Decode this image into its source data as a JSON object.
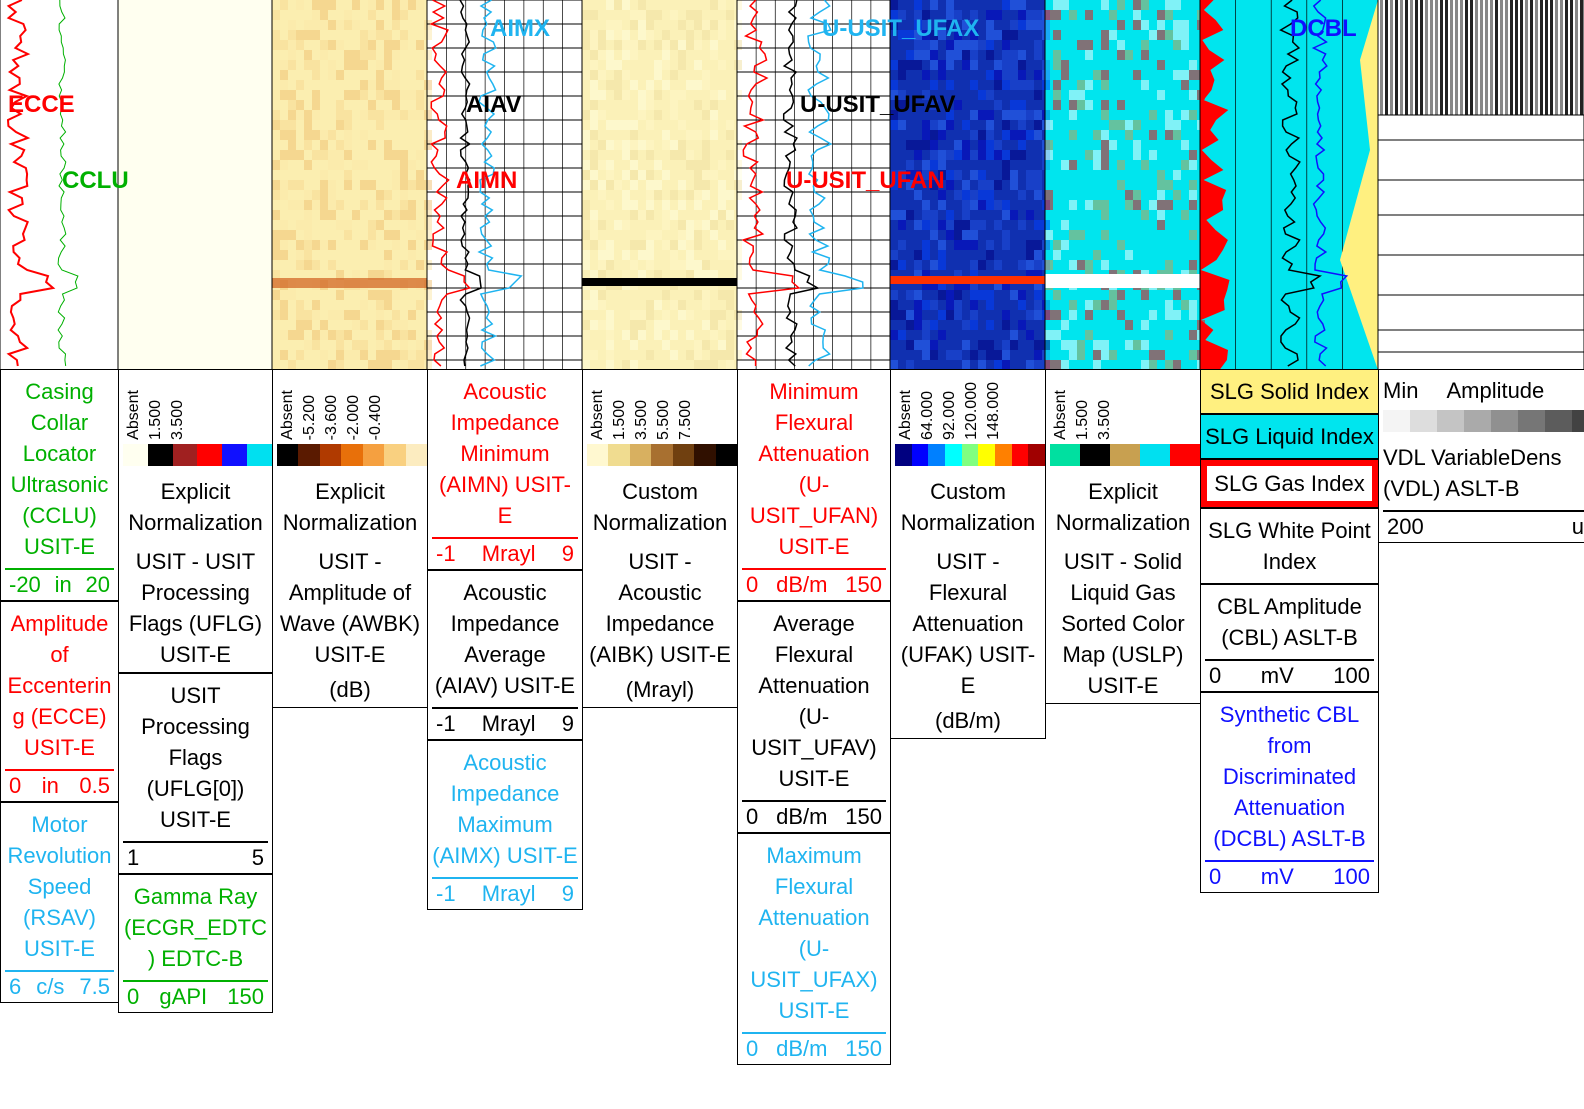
{
  "curve_labels": [
    {
      "text": "ECCE",
      "color": "#ff0000"
    },
    {
      "text": "CCLU",
      "color": "#00b000"
    },
    {
      "text": "AIMX",
      "color": "#1fb4f0"
    },
    {
      "text": "AIAV",
      "color": "#000000"
    },
    {
      "text": "AIMN",
      "color": "#ff0000"
    },
    {
      "text": "U-USIT_UFAX",
      "color": "#1fb4f0"
    },
    {
      "text": "U-USIT_UFAV",
      "color": "#000000"
    },
    {
      "text": "U-USIT_UFAN",
      "color": "#ff0000"
    },
    {
      "text": "DCBL",
      "color": "#1010ff"
    }
  ],
  "tracks": [
    {
      "blocks": [
        {
          "title": "Casing Collar Locator Ultrasonic (CCLU) USIT-E",
          "color": "#00b000",
          "scale": [
            "-20",
            "in",
            "20"
          ]
        },
        {
          "title": "Amplitude of Eccentering (ECCE) USIT-E",
          "color": "#ff0000",
          "scale": [
            "0",
            "in",
            "0.5"
          ]
        },
        {
          "title": "Motor Revolution Speed (RSAV) USIT-E",
          "color": "#1fb4f0",
          "scale": [
            "6",
            "c/s",
            "7.5"
          ]
        }
      ]
    },
    {
      "blocks": [
        {
          "ticks": [
            "Absent",
            "1.500",
            "3.500"
          ],
          "palette": [
            "#fffff0",
            "#000000",
            "#a02020",
            "#ff0000",
            "#1010ff",
            "#00e0f0"
          ],
          "title": "Explicit Normalization",
          "color": "#000000",
          "note": "USIT - USIT Processing Flags (UFLG) USIT-E"
        },
        {
          "title": "USIT Processing Flags (UFLG[0]) USIT-E",
          "color": "#000000",
          "scale": [
            "1",
            "5"
          ]
        },
        {
          "title": "Gamma Ray (ECGR_EDTC) EDTC-B",
          "color": "#00b000",
          "scale": [
            "0",
            "gAPI",
            "150"
          ]
        }
      ]
    },
    {
      "blocks": [
        {
          "ticks": [
            "Absent",
            "-5.200",
            "-3.600",
            "-2.000",
            "-0.400"
          ],
          "palette": [
            "#000000",
            "#5a1a00",
            "#b03a00",
            "#e8700a",
            "#f5a040",
            "#f9d080",
            "#fcecc0"
          ],
          "title": "Explicit Normalization",
          "color": "#000000",
          "note": "USIT - Amplitude of Wave (AWBK) USIT-E",
          "note2": "(dB)"
        }
      ]
    },
    {
      "blocks": [
        {
          "title": "Acoustic Impedance Minimum (AIMN) USIT-E",
          "color": "#ff0000",
          "scale": [
            "-1",
            "Mrayl",
            "9"
          ]
        },
        {
          "title": "Acoustic Impedance Average (AIAV) USIT-E",
          "color": "#000000",
          "scale": [
            "-1",
            "Mrayl",
            "9"
          ]
        },
        {
          "title": "Acoustic Impedance Maximum (AIMX) USIT-E",
          "color": "#1fb4f0",
          "scale": [
            "-1",
            "Mrayl",
            "9"
          ]
        }
      ]
    },
    {
      "blocks": [
        {
          "ticks": [
            "Absent",
            "1.500",
            "3.500",
            "5.500",
            "7.500"
          ],
          "palette": [
            "#fff8d0",
            "#f0dc90",
            "#d8b060",
            "#a87030",
            "#704010",
            "#301000",
            "#000000"
          ],
          "title": "Custom Normalization",
          "color": "#000000",
          "note": "USIT - Acoustic Impedance (AIBK) USIT-E",
          "note2": "(Mrayl)"
        }
      ]
    },
    {
      "blocks": [
        {
          "title": "Minimum Flexural Attenuation (U-USIT_UFAN) USIT-E",
          "color": "#ff0000",
          "scale": [
            "0",
            "dB/m",
            "150"
          ]
        },
        {
          "title": "Average Flexural Attenuation (U-USIT_UFAV) USIT-E",
          "color": "#000000",
          "scale": [
            "0",
            "dB/m",
            "150"
          ]
        },
        {
          "title": "Maximum Flexural Attenuation (U-USIT_UFAX) USIT-E",
          "color": "#1fb4f0",
          "scale": [
            "0",
            "dB/m",
            "150"
          ]
        }
      ]
    },
    {
      "blocks": [
        {
          "ticks": [
            "Absent",
            "64.000",
            "92.000",
            "120.000",
            "148.000"
          ],
          "palette": [
            "#000080",
            "#0000ff",
            "#0080ff",
            "#00ffff",
            "#80ff80",
            "#ffff00",
            "#ff8000",
            "#ff0000",
            "#a00000"
          ],
          "title": "Custom Normalization",
          "color": "#000000",
          "note": "USIT - Flexural Attenuation (UFAK) USIT-E",
          "note2": "(dB/m)"
        }
      ]
    },
    {
      "blocks": [
        {
          "ticks": [
            "Absent",
            "1.500",
            "3.500"
          ],
          "palette": [
            "#00e0a0",
            "#000000",
            "#c8a050",
            "#00e0f0",
            "#ff0000"
          ],
          "title": "Explicit Normalization",
          "color": "#000000",
          "note": "USIT - Solid Liquid Gas Sorted Color Map (USLP) USIT-E"
        }
      ]
    },
    {
      "blocks": [
        {
          "title": "SLG Solid Index",
          "color": "#000000",
          "bg": "#fff080"
        },
        {
          "title": "SLG Liquid Index",
          "color": "#000000",
          "bg": "#00e5ee"
        },
        {
          "title": "SLG Gas Index",
          "color": "#000000",
          "bg": "#ff0000"
        },
        {
          "title": "SLG White Point Index",
          "color": "#000000"
        },
        {
          "title": "CBL Amplitude (CBL) ASLT-B",
          "color": "#000000",
          "scale": [
            "0",
            "mV",
            "100"
          ]
        },
        {
          "title": "Synthetic CBL from Discriminated Attenuation (DCBL) ASLT-B",
          "color": "#1010ff",
          "scale": [
            "0",
            "mV",
            "100"
          ]
        }
      ]
    },
    {
      "blocks": [
        {
          "header_row": [
            "Min",
            "Amplitude"
          ],
          "palette": [
            "#f4f4f4",
            "#dddddd",
            "#c4c4c4",
            "#aaaaaa",
            "#909090",
            "#767676",
            "#5c5c5c",
            "#424242"
          ],
          "title": "VDL VariableDens (VDL) ASLT-B",
          "color": "#000000",
          "scale": [
            "200",
            "us"
          ]
        }
      ]
    }
  ]
}
